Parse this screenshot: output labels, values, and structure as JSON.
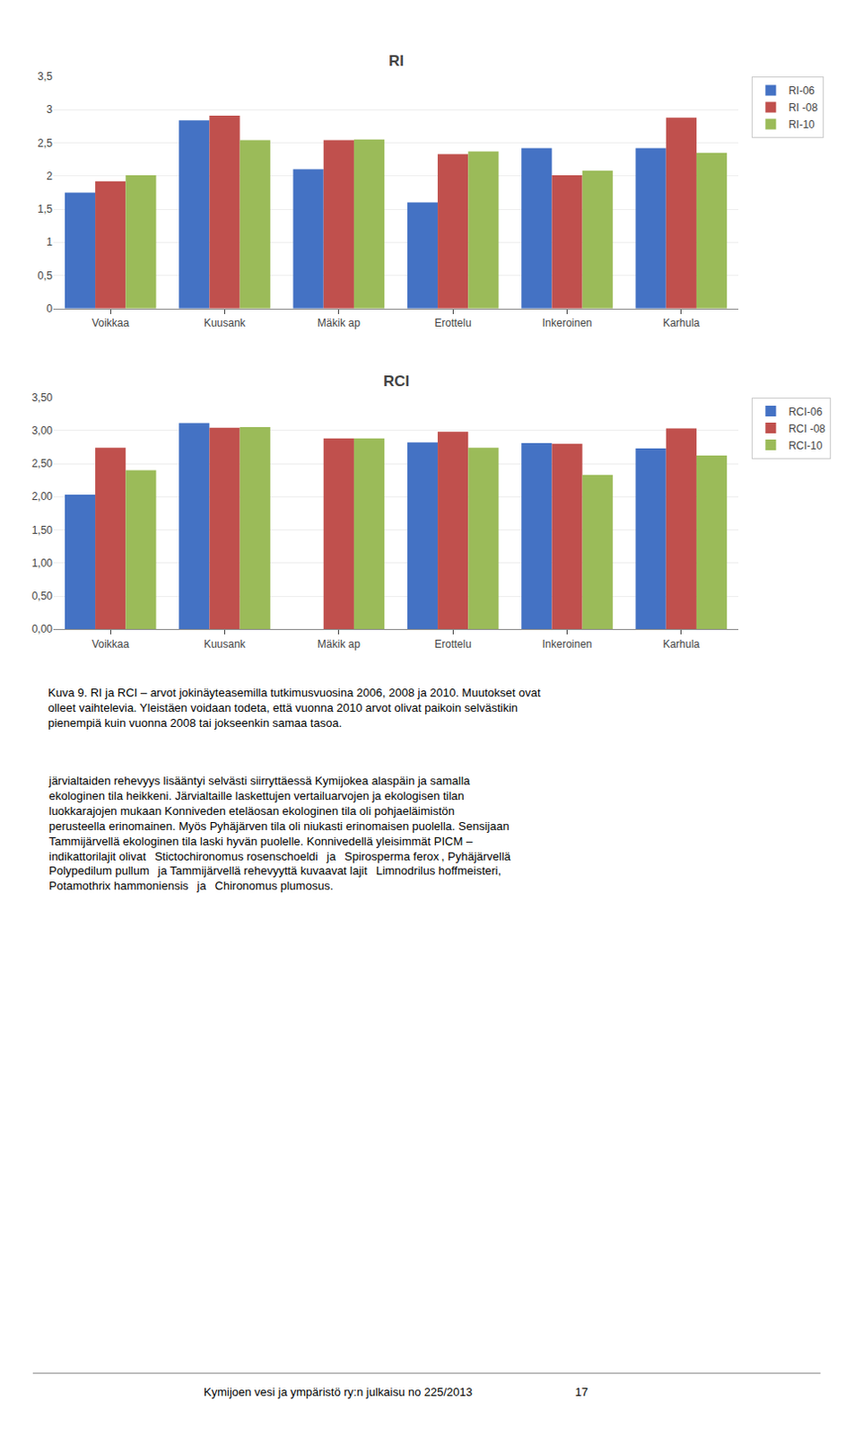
{
  "chart_data": [
    {
      "type": "bar",
      "title": "RI",
      "categories": [
        "Voikkaa",
        "Kuusank",
        "Mäkik ap",
        "Erottelu",
        "Inkeroinen",
        "Karhula"
      ],
      "series": [
        {
          "name": "RI-06",
          "color": "#4472C4",
          "values": [
            1.75,
            2.84,
            2.1,
            1.6,
            2.42,
            2.42
          ]
        },
        {
          "name": "RI -08",
          "color": "#C0504D",
          "values": [
            1.92,
            2.91,
            2.54,
            2.33,
            2.01,
            2.88
          ]
        },
        {
          "name": "RI-10",
          "color": "#9BBB59",
          "values": [
            2.01,
            2.54,
            2.55,
            2.37,
            2.08,
            2.35
          ]
        }
      ],
      "ylim": [
        0,
        3.5
      ],
      "yticks": [
        0,
        {
          "value": 0.5,
          "label": "0,5"
        },
        1,
        {
          "value": 1.5,
          "label": "1,5"
        },
        2,
        {
          "value": 2.5,
          "label": "2,5"
        },
        3,
        {
          "value": 3.5,
          "label": "3,5"
        }
      ],
      "grid": true,
      "legend": "right"
    },
    {
      "type": "bar",
      "title": "RCI",
      "categories": [
        "Voikkaa",
        "Kuusank",
        "Mäkik ap",
        "Erottelu",
        "Inkeroinen",
        "Karhula"
      ],
      "series": [
        {
          "name": "RCI-06",
          "color": "#4472C4",
          "values": [
            2.03,
            3.11,
            0.0,
            2.82,
            2.81,
            2.73
          ]
        },
        {
          "name": "RCI -08",
          "color": "#C0504D",
          "values": [
            2.74,
            3.04,
            2.88,
            2.98,
            2.8,
            3.03
          ]
        },
        {
          "name": "RCI-10",
          "color": "#9BBB59",
          "values": [
            2.4,
            3.05,
            2.88,
            2.74,
            2.33,
            2.62
          ]
        }
      ],
      "ylim": [
        0.0,
        3.5
      ],
      "yticks": [
        {
          "value": 0.0,
          "label": "0,00"
        },
        {
          "value": 0.5,
          "label": "0,50"
        },
        {
          "value": 1.0,
          "label": "1,00"
        },
        {
          "value": 1.5,
          "label": "1,50"
        },
        {
          "value": 2.0,
          "label": "2,00"
        },
        {
          "value": 2.5,
          "label": "2,50"
        },
        {
          "value": 3.0,
          "label": "3,00"
        },
        {
          "value": 3.5,
          "label": "3,50"
        }
      ],
      "grid": true,
      "legend": "right",
      "annotations": [
        "Kuva 9. RI ja RCI – arvot jokinäyteasemilla tutkimusvuosina 2006, 2008 ja 2010. Muutokset ovat\nolleet vaihtelevia. Yleistäen voidaan todeta, että vuonna 2010 arvot olivat paikoin selvästikin\npienempiä kuin vuonna 2008 tai jokseenkin samaa tasoa.",
        "järvialtaiden rehevyys lisääntyi selvästi siirryttäessä Kymijokea alaspäin ja samalla\nekologinen tila heikkeni. Järvialtaille laskettujen vertailuarvojen ja ekologisen tilan\nluokkarajojen mukaan Konniveden eteläosan ekologinen tila oli pohjaeläimistön\nperusteella erinomainen. Myös Pyhäjärven tila oli niukasti erinomaisen puolella. Sensijaan\nTammijärvellä ekologinen tila laski hyvän puolelle. Konnivedellä yleisimmät PICM –\nindikattorilajit olivat   Stictochironomus rosenschoeldi   ja   Spirosperma ferox , Pyhäjärvellä\nPolypedilum pullum   ja Tammijärvellä rehevyyttä kuvaavat lajit   Limnodrilus hoffmeisteri,\nPotamothrix hammoniensis   ja   Chironomus plumosus.",
        "Kymijoen vesi ja ympäristö ry:n julkaisu no 225/2013                                17"
      ]
    }
  ]
}
